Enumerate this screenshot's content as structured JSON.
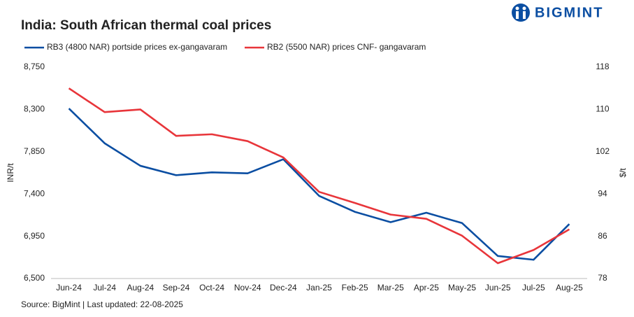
{
  "logo": "BIGMINT",
  "chart_data": {
    "type": "line",
    "title": "India: South African thermal coal prices",
    "source": "Source: BigMint | Last updated: 22-08-2025",
    "ylabel": "INR/t",
    "y2label": "$/t",
    "categories": [
      "Jun-24",
      "Jul-24",
      "Aug-24",
      "Sep-24",
      "Oct-24",
      "Nov-24",
      "Dec-24",
      "Jan-25",
      "Feb-25",
      "Mar-25",
      "Apr-25",
      "May-25",
      "Jun-25",
      "Jul-25",
      "Aug-25"
    ],
    "series": [
      {
        "name": "RB3 (4800 NAR) portside prices ex-gangavaram",
        "color": "#0b4ea2",
        "axis": "y",
        "values": [
          8310,
          7940,
          7700,
          7600,
          7630,
          7620,
          7770,
          7380,
          7210,
          7100,
          7200,
          7090,
          6740,
          6700,
          7080
        ]
      },
      {
        "name": "RB2 (5500 NAR) prices CNF- gangavaram",
        "color": "#e8353a",
        "axis": "y2",
        "values": [
          114.0,
          109.5,
          110.0,
          105.0,
          105.3,
          104.0,
          100.9,
          94.4,
          92.3,
          90.1,
          89.3,
          86.1,
          80.9,
          83.4,
          87.3
        ]
      }
    ],
    "ylim": [
      6500,
      8750
    ],
    "yticks": [
      {
        "value": 6500,
        "label": "6,500"
      },
      {
        "value": 6950,
        "label": "6,950"
      },
      {
        "value": 7400,
        "label": "7,400"
      },
      {
        "value": 7850,
        "label": "7,850"
      },
      {
        "value": 8300,
        "label": "8,300"
      },
      {
        "value": 8750,
        "label": "8,750"
      }
    ],
    "y2lim": [
      78,
      118
    ],
    "y2ticks": [
      78,
      86,
      94,
      102,
      110,
      118
    ],
    "grid": false
  }
}
